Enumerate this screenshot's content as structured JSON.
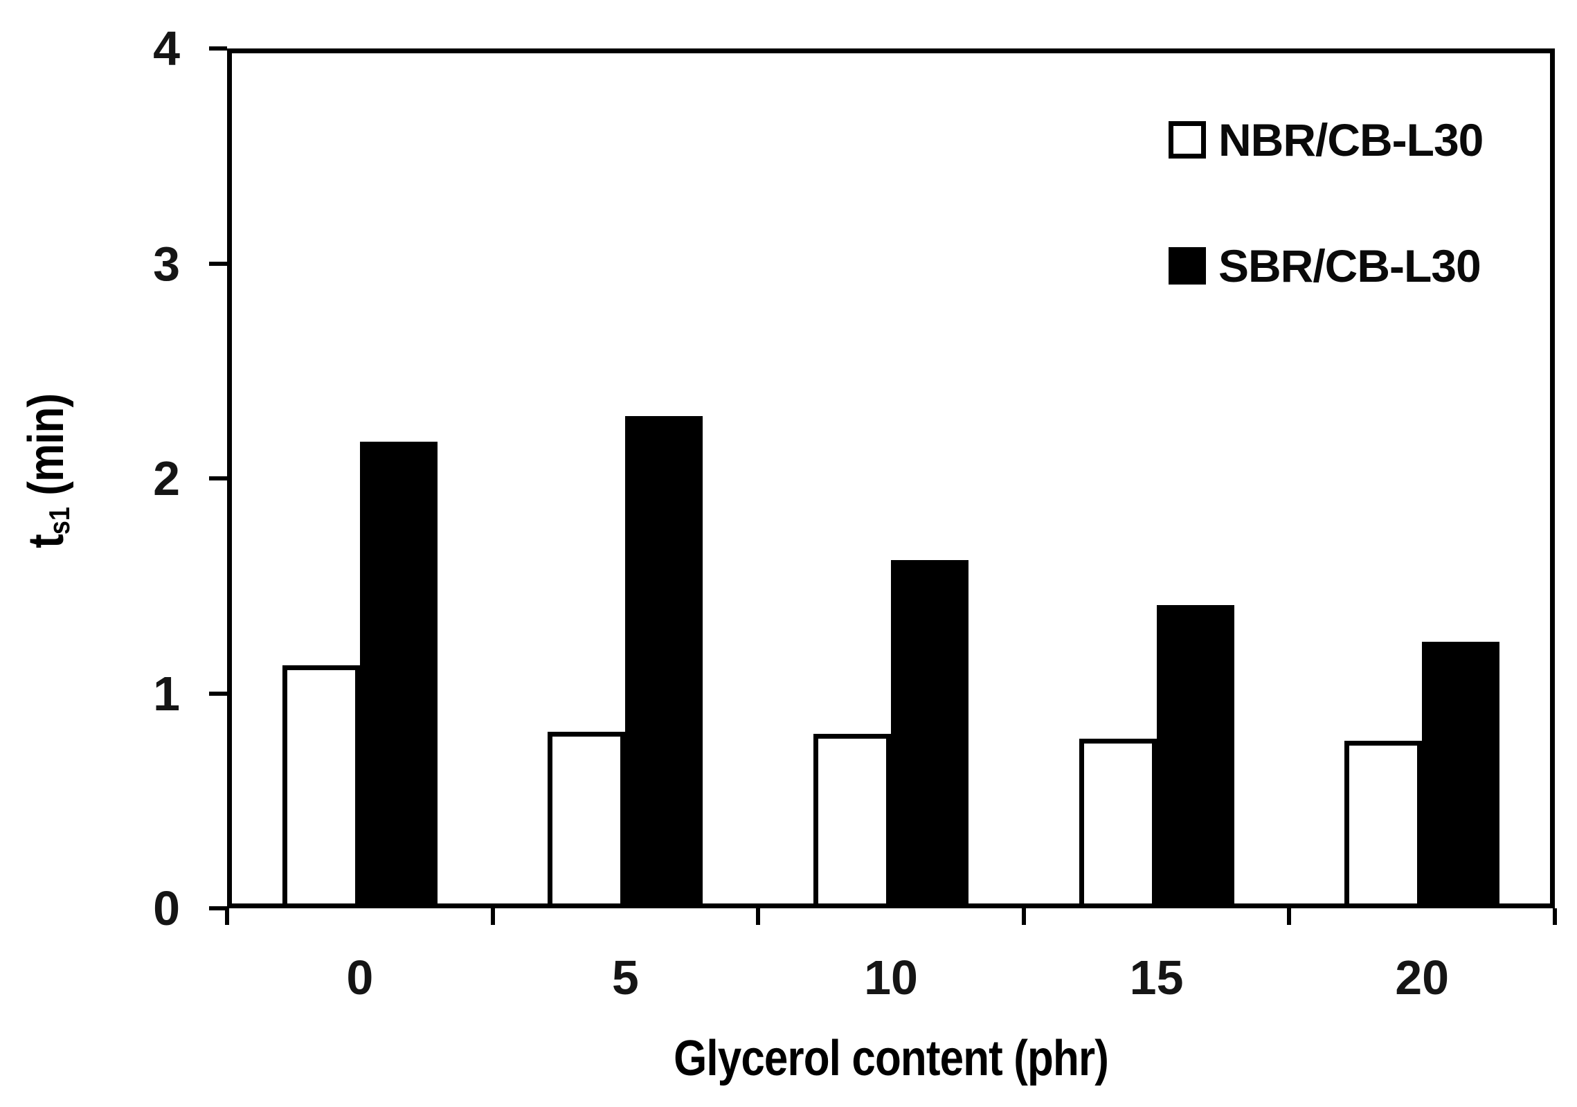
{
  "figure": {
    "background": "#ffffff",
    "ink_color": "#000000"
  },
  "chart_data": {
    "type": "bar",
    "title": "",
    "categories": [
      "0",
      "5",
      "10",
      "15",
      "20"
    ],
    "series": [
      {
        "name": "NBR/CB-L30",
        "fill": "#ffffff",
        "stroke": "#000000",
        "values": [
          1.13,
          0.82,
          0.81,
          0.79,
          0.78
        ]
      },
      {
        "name": "SBR/CB-L30",
        "fill": "#000000",
        "stroke": "#000000",
        "values": [
          2.17,
          2.29,
          1.62,
          1.41,
          1.24
        ]
      }
    ],
    "xlabel": "Glycerol content (phr)",
    "ylabel": {
      "main": "t",
      "sub": "s1",
      "rest": " (min)"
    },
    "ylim": [
      0,
      4
    ],
    "yticks": [
      0,
      1,
      2,
      3,
      4
    ],
    "grid": false,
    "plot_border": true,
    "legend_position": "top-right",
    "legend": [
      {
        "label": "NBR/CB-L30",
        "swatch": "open"
      },
      {
        "label": "SBR/CB-L30",
        "swatch": "filled"
      }
    ]
  }
}
